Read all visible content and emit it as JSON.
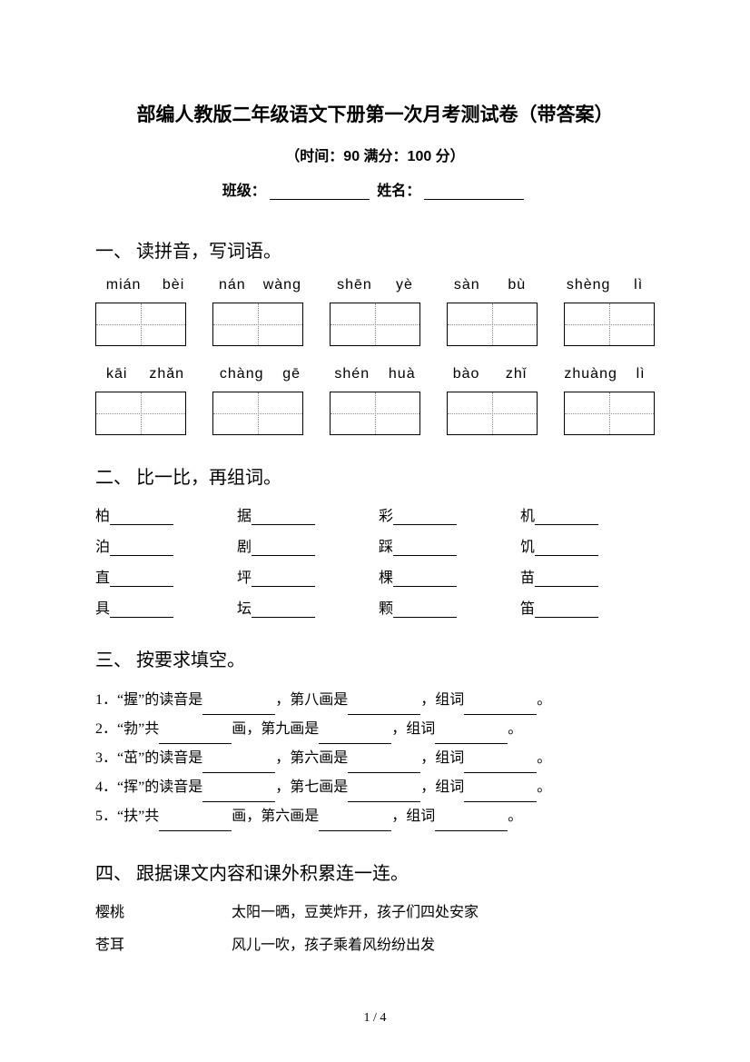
{
  "doc": {
    "title": "部编人教版二年级语文下册第一次月考测试卷（带答案）",
    "subtitle": "（时间：90   满分：100 分）",
    "class_label": "班级：",
    "name_label": "姓名："
  },
  "section1": {
    "head": "一、 读拼音，写词语。",
    "row1": [
      [
        "mián",
        "bèi"
      ],
      [
        "nán",
        "wàng"
      ],
      [
        "shēn",
        "yè"
      ],
      [
        "sàn",
        "bù"
      ],
      [
        "shèng",
        "lì"
      ]
    ],
    "row2": [
      [
        "kāi",
        "zhǎn"
      ],
      [
        "chàng",
        "gē"
      ],
      [
        "shén",
        "huà"
      ],
      [
        "bào",
        "zhǐ"
      ],
      [
        "zhuàng",
        "lì"
      ]
    ]
  },
  "section2": {
    "head": "二、 比一比，再组词。",
    "rows": [
      [
        "柏",
        "据",
        "彩",
        "机"
      ],
      [
        "泊",
        "剧",
        "踩",
        "饥"
      ],
      [
        "直",
        "坪",
        "棵",
        "苗"
      ],
      [
        "具",
        "坛",
        "颗",
        "笛"
      ]
    ]
  },
  "section3": {
    "head": "三、 按要求填空。",
    "items": [
      {
        "n": "1．",
        "a": "“握”的读音是",
        "b": "，第八画是",
        "c": "，组词",
        "d": "。"
      },
      {
        "n": "2．",
        "a": "“勃”共",
        "b": "画，第九画是",
        "c": "，组词",
        "d": "。"
      },
      {
        "n": "3．",
        "a": "“茁”的读音是",
        "b": "，第六画是",
        "c": "，组词",
        "d": "。"
      },
      {
        "n": "4．",
        "a": "“挥”的读音是",
        "b": "，第七画是",
        "c": "，组词",
        "d": "。"
      },
      {
        "n": "5．",
        "a": "“扶”共",
        "b": "画，第六画是",
        "c": "，组词",
        "d": "。"
      }
    ]
  },
  "section4": {
    "head": "四、 跟据课文内容和课外积累连一连。",
    "pairs": [
      {
        "left": "樱桃",
        "right": "太阳一晒，豆荚炸开，孩子们四处安家"
      },
      {
        "left": "苍耳",
        "right": "风儿一吹，孩子乘着风纷纷出发"
      }
    ]
  },
  "footer": {
    "page": "1 / 4"
  }
}
